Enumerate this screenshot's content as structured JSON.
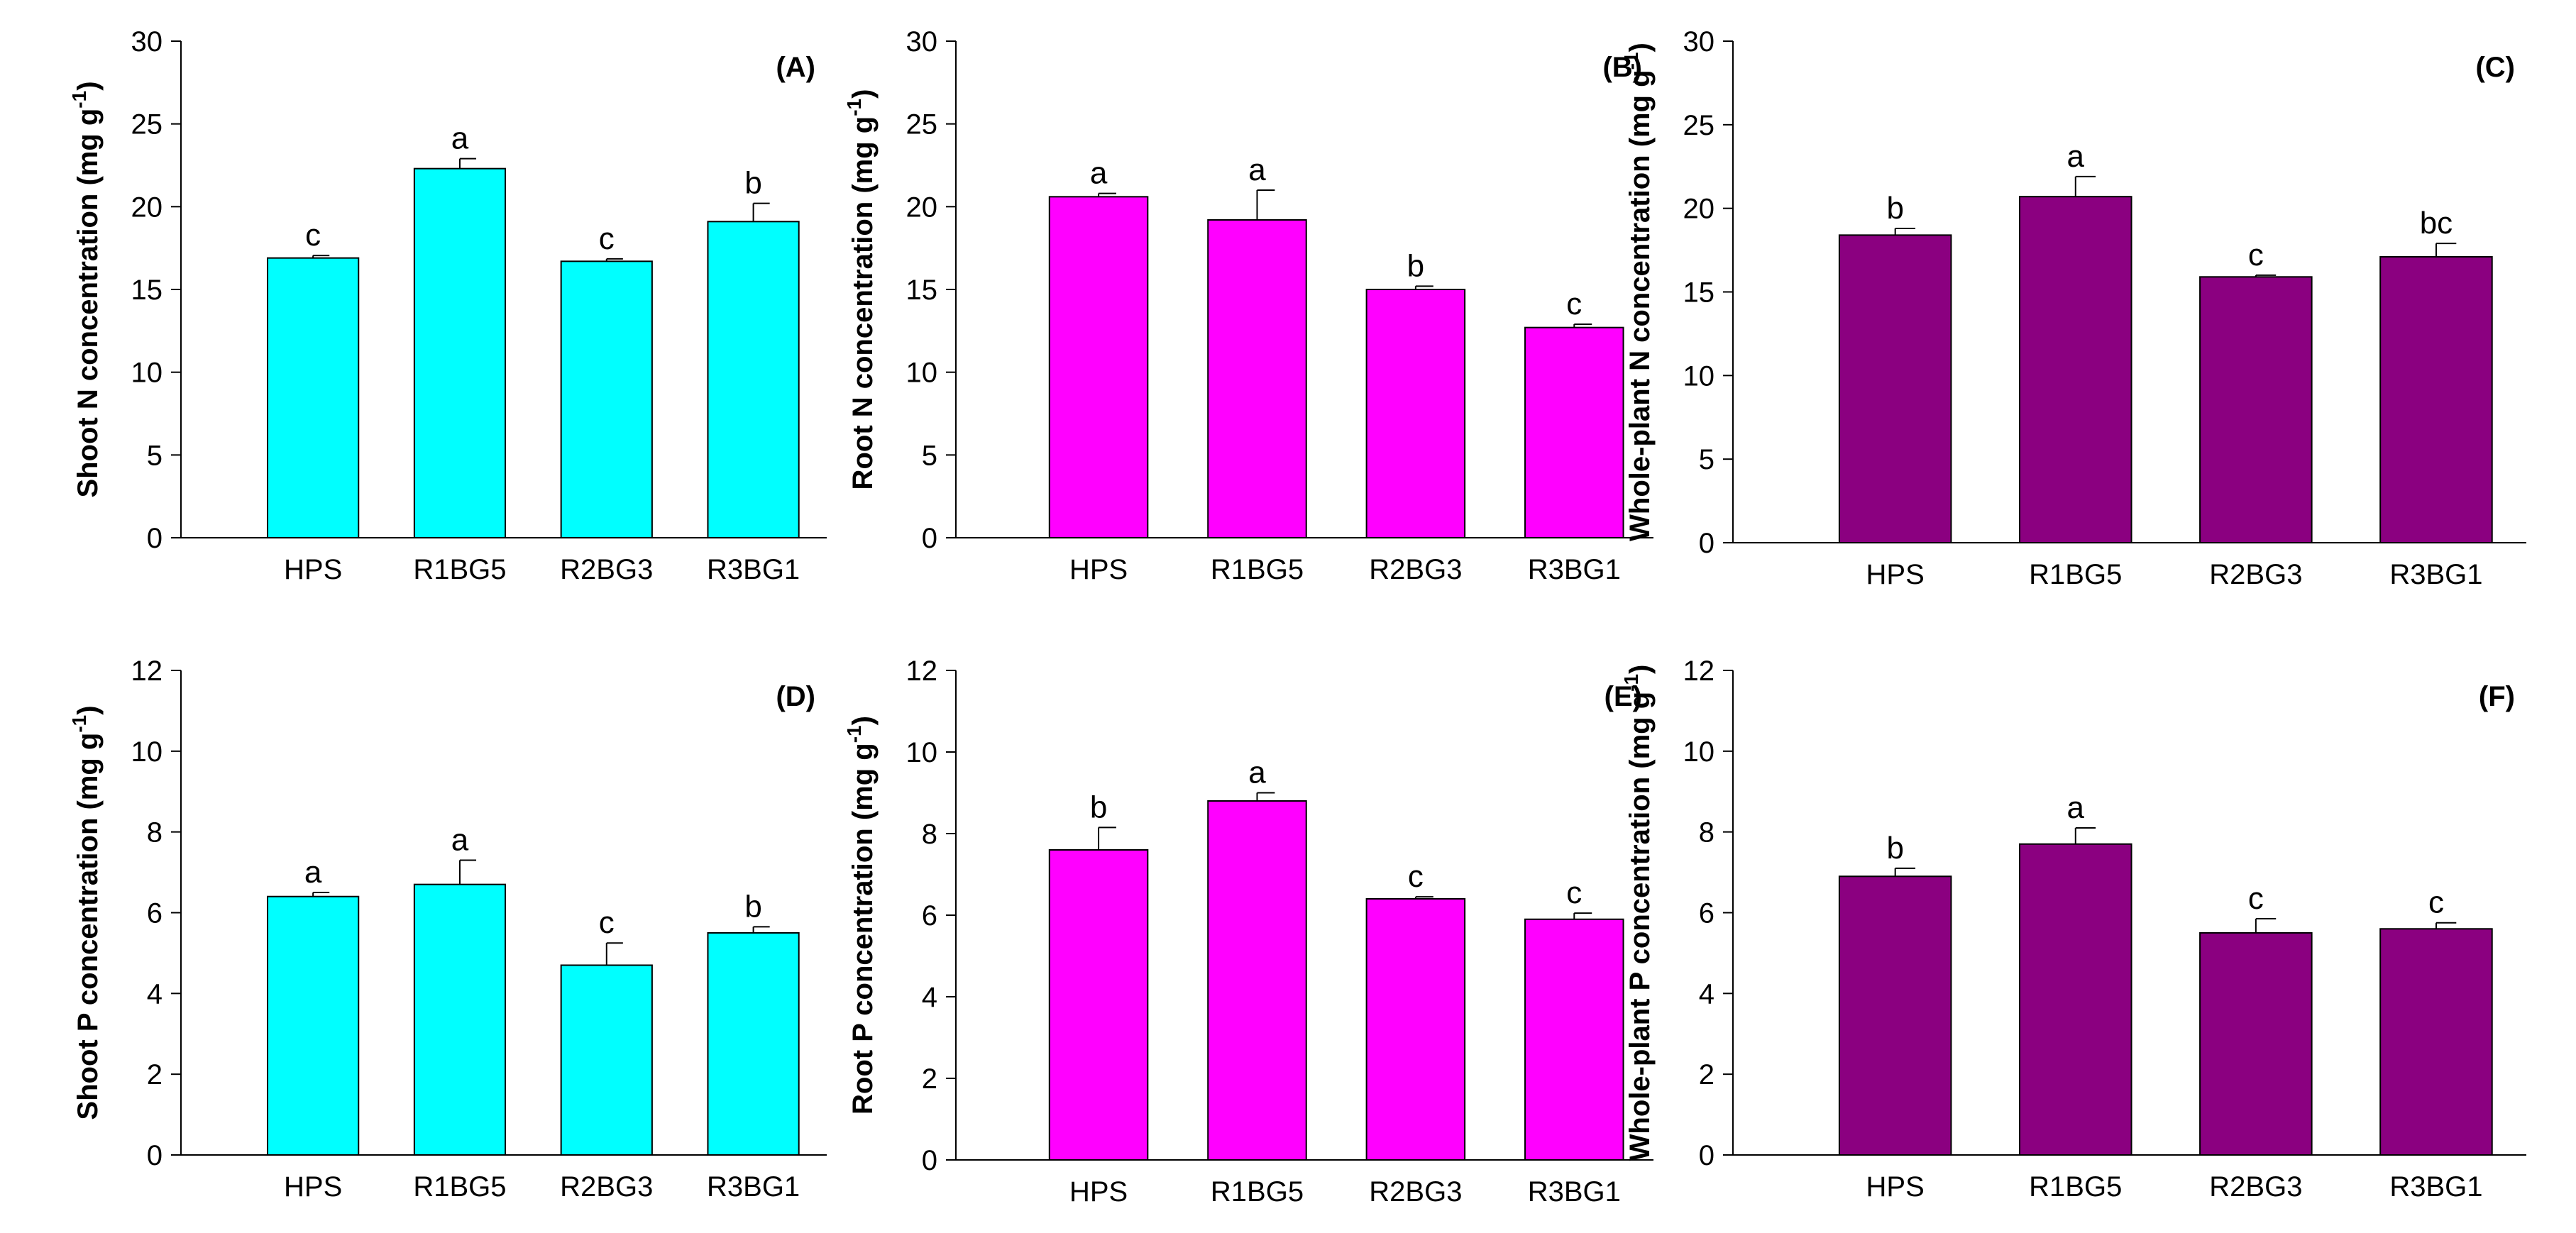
{
  "chart_data": [
    {
      "type": "bar",
      "panel": "(A)",
      "ylabel": "Shoot N concentration (mg g",
      "ylabel_sup": "-1",
      "ylabel_end": ")",
      "categories": [
        "HPS",
        "R1BG5",
        "R2BG3",
        "R3BG1"
      ],
      "values": [
        16.9,
        22.3,
        16.7,
        19.1
      ],
      "errors": [
        0.15,
        0.6,
        0.15,
        1.1
      ],
      "letters": [
        "c",
        "a",
        "c",
        "b"
      ],
      "ylim": [
        0,
        30
      ],
      "yticks": [
        0,
        5,
        10,
        15,
        20,
        25,
        30
      ],
      "color": "#00ffff"
    },
    {
      "type": "bar",
      "panel": "(B)",
      "ylabel": "Root N concentration (mg g",
      "ylabel_sup": "-1",
      "ylabel_end": ")",
      "categories": [
        "HPS",
        "R1BG5",
        "R2BG3",
        "R3BG1"
      ],
      "values": [
        20.6,
        19.2,
        15.0,
        12.7
      ],
      "errors": [
        0.2,
        1.8,
        0.2,
        0.2
      ],
      "letters": [
        "a",
        "a",
        "b",
        "c"
      ],
      "ylim": [
        0,
        30
      ],
      "yticks": [
        0,
        5,
        10,
        15,
        20,
        25,
        30
      ],
      "color": "#ff00ff"
    },
    {
      "type": "bar",
      "panel": "(C)",
      "ylabel": "Whole-plant N concentration (mg g",
      "ylabel_sup": "-1",
      "ylabel_end": ")",
      "categories": [
        "HPS",
        "R1BG5",
        "R2BG3",
        "R3BG1"
      ],
      "values": [
        18.4,
        20.7,
        15.9,
        17.1
      ],
      "errors": [
        0.4,
        1.2,
        0.1,
        0.8
      ],
      "letters": [
        "b",
        "a",
        "c",
        "bc"
      ],
      "ylim": [
        0,
        30
      ],
      "yticks": [
        0,
        5,
        10,
        15,
        20,
        25,
        30
      ],
      "color": "#8b0080"
    },
    {
      "type": "bar",
      "panel": "(D)",
      "ylabel": "Shoot P concentration (mg g",
      "ylabel_sup": "-1",
      "ylabel_end": ")",
      "categories": [
        "HPS",
        "R1BG5",
        "R2BG3",
        "R3BG1"
      ],
      "values": [
        6.4,
        6.7,
        4.7,
        5.5
      ],
      "errors": [
        0.1,
        0.6,
        0.55,
        0.15
      ],
      "letters": [
        "a",
        "a",
        "c",
        "b"
      ],
      "ylim": [
        0,
        12
      ],
      "yticks": [
        0,
        2,
        4,
        6,
        8,
        10,
        12
      ],
      "color": "#00ffff"
    },
    {
      "type": "bar",
      "panel": "(E)",
      "ylabel": "Root P concentration (mg g",
      "ylabel_sup": "-1",
      "ylabel_end": ")",
      "categories": [
        "HPS",
        "R1BG5",
        "R2BG3",
        "R3BG1"
      ],
      "values": [
        7.6,
        8.8,
        6.4,
        5.9
      ],
      "errors": [
        0.55,
        0.2,
        0.05,
        0.15
      ],
      "letters": [
        "b",
        "a",
        "c",
        "c"
      ],
      "ylim": [
        0,
        12
      ],
      "yticks": [
        0,
        2,
        4,
        6,
        8,
        10,
        12
      ],
      "color": "#ff00ff"
    },
    {
      "type": "bar",
      "panel": "(F)",
      "ylabel": "Whole-plant P concentration (mg g",
      "ylabel_sup": "-1",
      "ylabel_end": ")",
      "categories": [
        "HPS",
        "R1BG5",
        "R2BG3",
        "R3BG1"
      ],
      "values": [
        6.9,
        7.7,
        5.5,
        5.6
      ],
      "errors": [
        0.2,
        0.4,
        0.35,
        0.15
      ],
      "letters": [
        "b",
        "a",
        "c",
        "c"
      ],
      "ylim": [
        0,
        12
      ],
      "yticks": [
        0,
        2,
        4,
        6,
        8,
        10,
        12
      ],
      "color": "#8b0080"
    }
  ]
}
